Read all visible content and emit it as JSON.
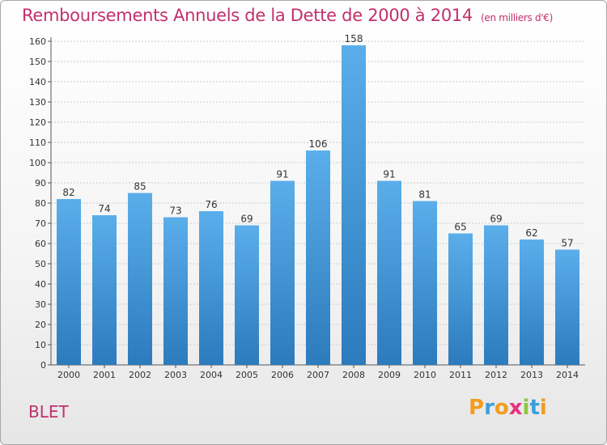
{
  "title": "Remboursements Annuels de la Dette de 2000 à 2014",
  "unit": "(en milliers d'€)",
  "commune": "BLET",
  "logo": {
    "letters": [
      "P",
      "r",
      "o",
      "x",
      "i",
      "t",
      "i"
    ],
    "colors": [
      "#f39c1f",
      "#3aa0db",
      "#f39c1f",
      "#e8327c",
      "#8dc63f",
      "#3aa0db",
      "#f39c1f"
    ]
  },
  "colors": {
    "title": "#c2306b",
    "bar_top": "#5aaeea",
    "bar_bottom": "#2c7bbd",
    "grid": "#cccccc"
  },
  "chart_data": {
    "type": "bar",
    "categories": [
      "2000",
      "2001",
      "2002",
      "2003",
      "2004",
      "2005",
      "2006",
      "2007",
      "2008",
      "2009",
      "2010",
      "2011",
      "2012",
      "2013",
      "2014"
    ],
    "values": [
      82,
      74,
      85,
      73,
      76,
      69,
      91,
      106,
      158,
      91,
      81,
      65,
      69,
      62,
      57
    ],
    "ylim": [
      0,
      160
    ],
    "yticks": [
      0,
      10,
      20,
      30,
      40,
      50,
      60,
      70,
      80,
      90,
      100,
      110,
      120,
      130,
      140,
      150,
      160
    ],
    "grid": true,
    "legend": "none"
  }
}
